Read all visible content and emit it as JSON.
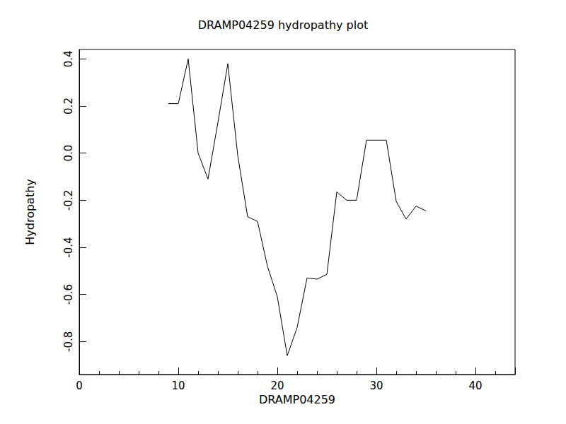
{
  "chart_data": {
    "type": "line",
    "title": "DRAMP04259 hydropathy plot",
    "x_label": "DRAMP04259",
    "y_label": "Hydropathy",
    "x": [
      9,
      10,
      11,
      12,
      13,
      14,
      15,
      16,
      17,
      18,
      19,
      20,
      21,
      22,
      23,
      24,
      25,
      26,
      27,
      28,
      29,
      30,
      31,
      32,
      33,
      34,
      35
    ],
    "values": [
      0.21,
      0.21,
      0.4,
      0.0,
      -0.11,
      0.13,
      0.38,
      -0.01,
      -0.27,
      -0.29,
      -0.48,
      -0.61,
      -0.86,
      -0.74,
      -0.53,
      -0.535,
      -0.515,
      -0.165,
      -0.2,
      -0.2,
      0.055,
      0.055,
      0.055,
      -0.205,
      -0.28,
      -0.225,
      -0.245
    ],
    "color": "#000000",
    "xlim": [
      0,
      44
    ],
    "xticks": [
      0,
      10,
      20,
      30,
      40
    ],
    "ylim": [
      -0.94,
      0.44
    ],
    "yticks": [
      -0.8,
      -0.6,
      -0.4,
      -0.2,
      {
        "value": 0,
        "label": "0.0"
      },
      0.2,
      0.4
    ],
    "grid": false
  }
}
